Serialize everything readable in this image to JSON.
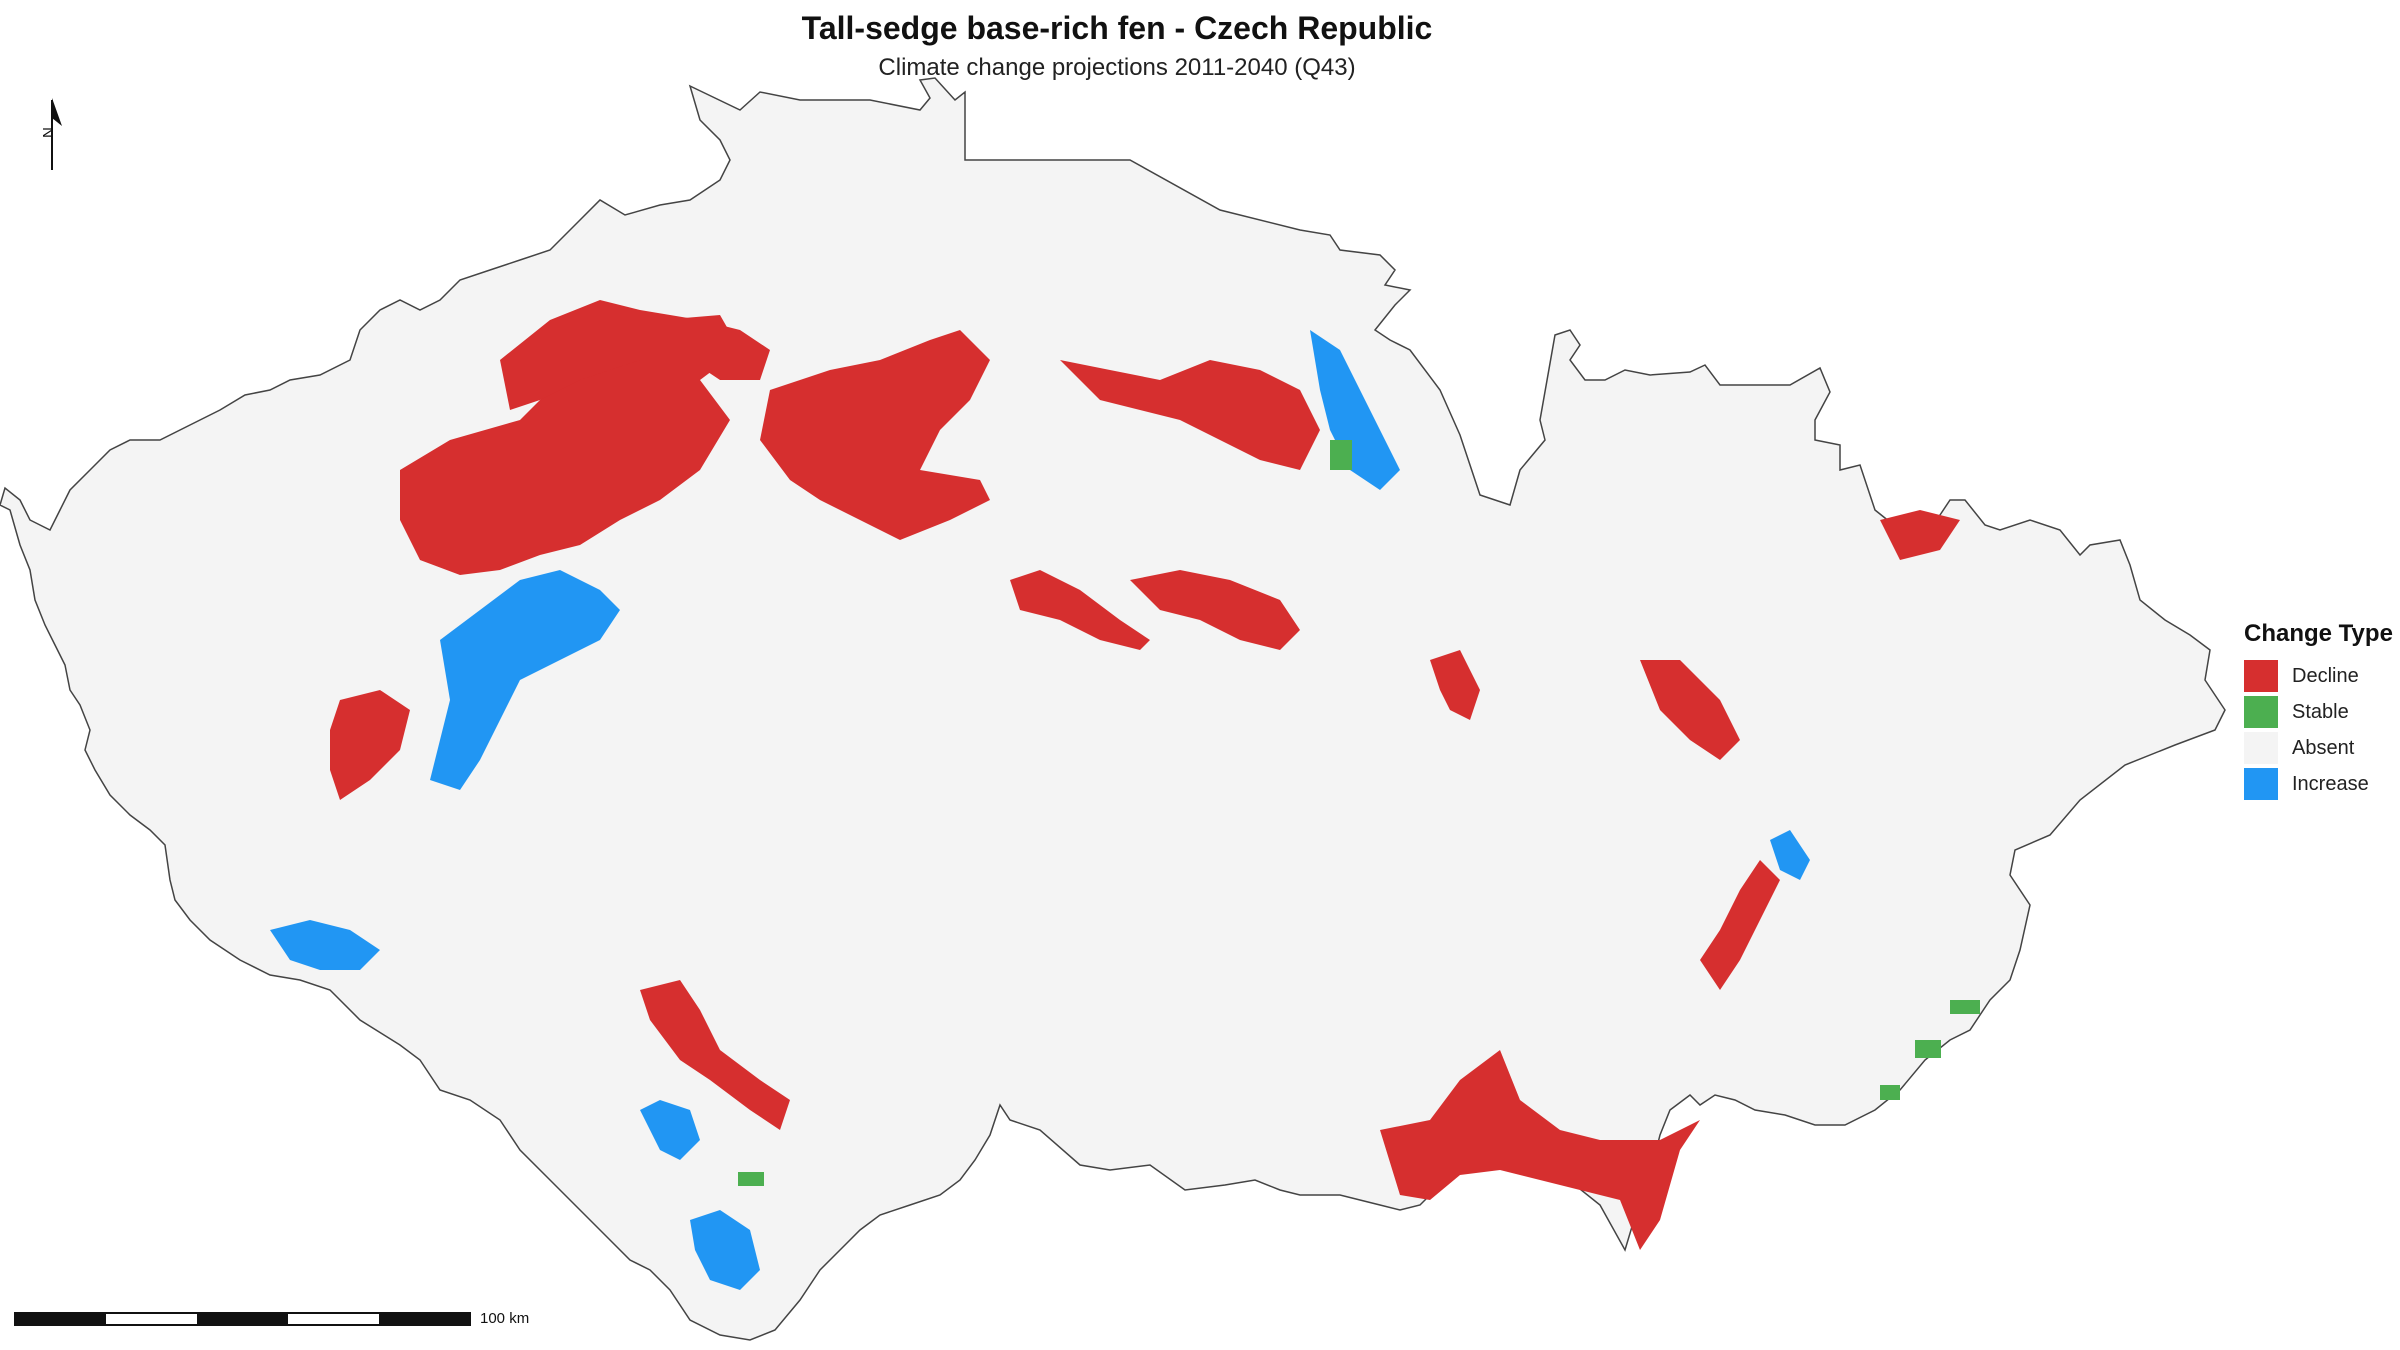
{
  "title": "Tall-sedge base-rich fen - Czech Republic",
  "subtitle": "Climate change projections 2011-2040 (Q43)",
  "north_arrow": {
    "label": "N"
  },
  "scale_bar": {
    "label": "100 km"
  },
  "legend": {
    "title": "Change Type",
    "items": [
      {
        "label": "Decline",
        "color": "#d62f2f"
      },
      {
        "label": "Stable",
        "color": "#4caf50"
      },
      {
        "label": "Absent",
        "color": "#f4f4f4"
      },
      {
        "label": "Increase",
        "color": "#2196f3"
      }
    ]
  },
  "colors": {
    "country_fill": "#f4f4f4",
    "border": "#444444"
  }
}
